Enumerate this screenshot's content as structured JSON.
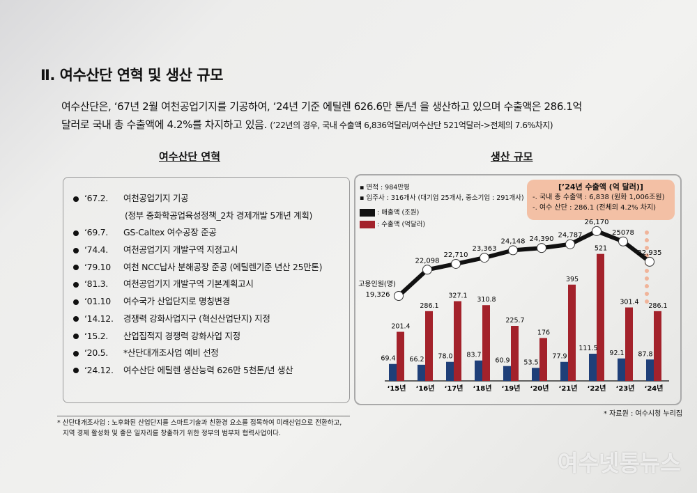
{
  "title": "Ⅱ. 여수산단 연혁 및 생산 규모",
  "intro": {
    "line1": "여수산단은, ‘67년 2월 여천공업기지를 기공하여, ‘24년 기준 에틸렌 626.6만 톤/년 을 생산하고 있으며 수출액은 286.1억",
    "line2": "달러로 국내 총 수출액에 4.2%를 차지하고 있음.",
    "note": "(’22년의 경우, 국내 수출액 6,836억달러/여수산단 521억달러->전체의 7.6%차지)"
  },
  "history": {
    "heading": "여수산단 연혁",
    "items": [
      {
        "date": "‘67.2.",
        "text": "여천공업기지 기공"
      },
      {
        "date": "",
        "text": "(정부 중화학공업육성정책_2차 경제개발 5개년 계획)"
      },
      {
        "date": "‘69.7.",
        "text": "GS-Caltex 여수공장 준공"
      },
      {
        "date": "‘74.4.",
        "text": "여천공업기지 개발구역 지정고시"
      },
      {
        "date": "‘79.10",
        "text": "여천 NCC납사 분해공장 준공 (에틸렌기준 년산 25만톤)"
      },
      {
        "date": "‘81.3.",
        "text": "여천공업기지 개발구역 기본계획고시"
      },
      {
        "date": "‘01.10",
        "text": "여수국가 산업단지로 명칭변경"
      },
      {
        "date": "‘14.12.",
        "text": "경쟁력 강화사업지구 (혁신산업단지) 지정"
      },
      {
        "date": "‘15.2.",
        "text": "산업집적지 경쟁력 강화사업 지정"
      },
      {
        "date": "‘20.5.",
        "text": "*산단대개조사업 예비 선정"
      },
      {
        "date": "‘24.12.",
        "text": "여수산단 에틸렌 생산능력 626만 5천톤/년 생산"
      }
    ]
  },
  "production": {
    "heading": "생산 규모",
    "area": "▪ 면적 : 984만평",
    "tenants": "▪ 입주사 : 316개사 (대기업 25개사, 중소기업 : 291개사)",
    "callout": {
      "title": "[’24년 수출액 (억 달러)]",
      "line1": "-. 국내 총 수출액 : 6,838 (원화 1,006조원)",
      "line2": "-. 여수 산단 : 286.1 (전체의 4.2% 차지)"
    }
  },
  "footnote": {
    "line1": "* 산단대개조사업 : 노후화된 산업단지를 스마트기술과 친환경 요소를 접목하여 미래산업으로 전환하고,",
    "line2": "지역 경제 활성화 및 좋은 일자리를 창출하기 위한 정부의 범부처 협력사업이다."
  },
  "source": "* 자료원 : 여수시청 누리집",
  "watermark": "여수넷통뉴스",
  "chart_data": {
    "type": "bar",
    "categories": [
      "‘15년",
      "‘16년",
      "‘17년",
      "‘18년",
      "‘19년",
      "‘20년",
      "‘21년",
      "‘22년",
      "‘23년",
      "‘24년"
    ],
    "series": [
      {
        "name": ": 매출액 (조원)",
        "kind": "bar",
        "color": "#1f3f78",
        "legend_color": "#111111",
        "values": [
          69.4,
          66.2,
          78.0,
          83.7,
          60.9,
          53.5,
          77.9,
          111.5,
          92.1,
          87.8
        ],
        "labels": [
          "69.4",
          "66.2",
          "78.0",
          "83.7",
          "60.9",
          "53.5",
          "77.9",
          "111.5",
          "92.1",
          "87.8"
        ]
      },
      {
        "name": ": 수출액 (억달러)",
        "kind": "bar",
        "color": "#a3222b",
        "values": [
          201.4,
          286.1,
          327.1,
          310.8,
          225.7,
          176,
          395,
          521,
          301.4,
          286.1
        ],
        "labels": [
          "201.4",
          "286.1",
          "327.1",
          "310.8",
          "225.7",
          "176",
          "395",
          "521",
          "301.4",
          "286.1"
        ]
      },
      {
        "name": "고용인원(명)",
        "kind": "line",
        "color": "#111111",
        "values": [
          19326,
          22098,
          22710,
          23363,
          24148,
          24390,
          24787,
          26170,
          25078,
          22935
        ],
        "labels": [
          "19,326",
          "22,098",
          "22,710",
          "23,363",
          "24,148",
          "24,390",
          "24,787",
          "26,170",
          "25078",
          "22,935"
        ]
      }
    ],
    "grid": false,
    "legend": "top-left"
  }
}
